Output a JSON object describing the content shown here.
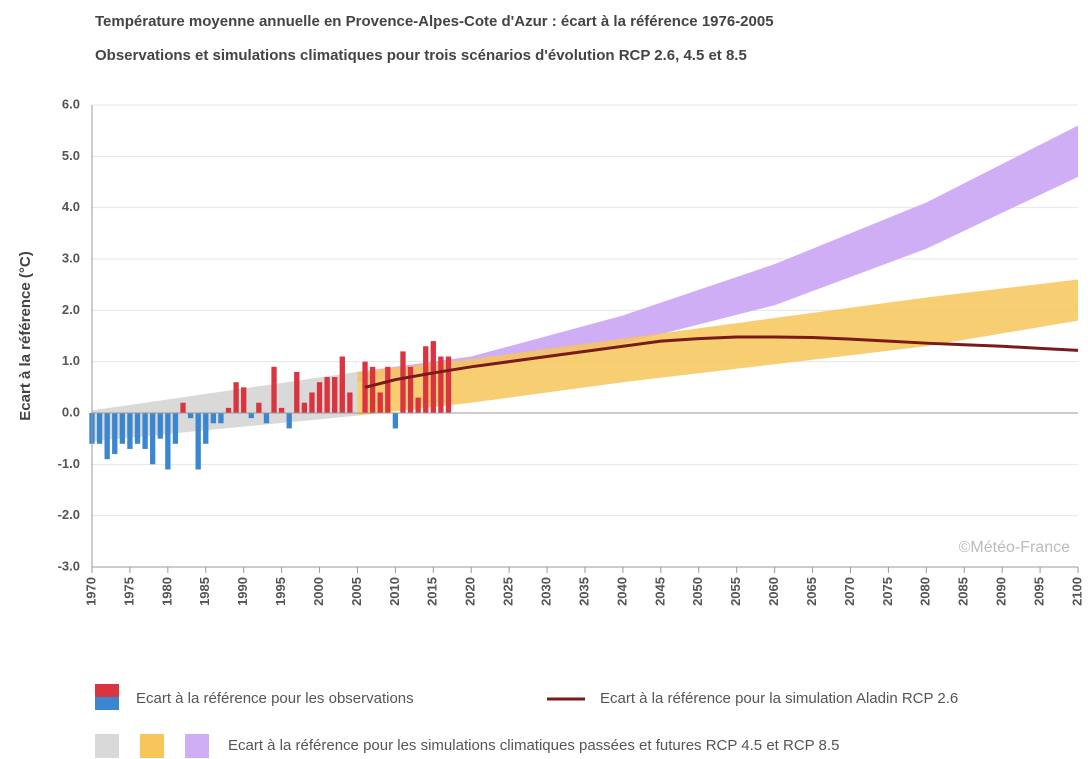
{
  "chart_data": {
    "type": "bar",
    "title": "Température moyenne annuelle en Provence-Alpes-Cote d'Azur : écart à la référence 1976-2005",
    "subtitle": "Observations et simulations climatiques pour trois scénarios d'évolution RCP 2.6, 4.5 et 8.5",
    "ylabel": "Ecart à la référence (°C)",
    "annotation": "©Météo-France",
    "xlim": [
      1970,
      2100
    ],
    "xticks": [
      1970,
      1975,
      1980,
      1985,
      1990,
      1995,
      2000,
      2005,
      2010,
      2015,
      2020,
      2025,
      2030,
      2035,
      2040,
      2045,
      2050,
      2055,
      2060,
      2065,
      2070,
      2075,
      2080,
      2085,
      2090,
      2095,
      2100
    ],
    "ylim": [
      -3,
      6
    ],
    "yticks": [
      {
        "value": -3,
        "label": "-3.0"
      },
      {
        "value": -2,
        "label": "-2.0"
      },
      {
        "value": -1,
        "label": "-1.0"
      },
      {
        "value": 0,
        "label": "0.0"
      },
      {
        "value": 1,
        "label": "1.0"
      },
      {
        "value": 2,
        "label": "2.0"
      },
      {
        "value": 3,
        "label": "3.0"
      },
      {
        "value": 4,
        "label": "4.0"
      },
      {
        "value": 5,
        "label": "5.0"
      },
      {
        "value": 6,
        "label": "6.0"
      }
    ],
    "grid": true,
    "observations": {
      "name": "Ecart à la référence pour les observations",
      "positive_color": "#d9343f",
      "negative_color": "#3a87d0",
      "x": [
        1970,
        1971,
        1972,
        1973,
        1974,
        1975,
        1976,
        1977,
        1978,
        1979,
        1980,
        1981,
        1982,
        1983,
        1984,
        1985,
        1986,
        1987,
        1988,
        1989,
        1990,
        1991,
        1992,
        1993,
        1994,
        1995,
        1996,
        1997,
        1998,
        1999,
        2000,
        2001,
        2002,
        2003,
        2004,
        2005,
        2006,
        2007,
        2008,
        2009,
        2010,
        2011,
        2012,
        2013,
        2014,
        2015,
        2016,
        2017
      ],
      "values": [
        -0.6,
        -0.6,
        -0.9,
        -0.8,
        -0.6,
        -0.7,
        -0.6,
        -0.7,
        -1.0,
        -0.5,
        -1.1,
        -0.6,
        0.2,
        -0.1,
        -1.1,
        -0.6,
        -0.2,
        -0.2,
        0.1,
        0.6,
        0.5,
        -0.1,
        0.2,
        -0.2,
        0.9,
        0.1,
        -0.3,
        0.8,
        0.2,
        0.4,
        0.6,
        0.7,
        0.7,
        1.1,
        0.4,
        null,
        1.0,
        0.9,
        0.4,
        0.9,
        -0.3,
        1.2,
        0.9,
        0.3,
        1.3,
        1.4,
        1.1,
        1.1
      ]
    },
    "line": {
      "name": "Ecart à la référence pour la simulation Aladin RCP 2.6",
      "color": "#7a1a1a",
      "x": [
        2006,
        2010,
        2015,
        2020,
        2025,
        2030,
        2035,
        2040,
        2045,
        2050,
        2055,
        2060,
        2065,
        2070,
        2075,
        2080,
        2085,
        2090,
        2095,
        2100
      ],
      "values": [
        0.5,
        0.65,
        0.78,
        0.9,
        1.0,
        1.1,
        1.2,
        1.3,
        1.4,
        1.45,
        1.48,
        1.48,
        1.47,
        1.44,
        1.4,
        1.36,
        1.33,
        1.3,
        1.26,
        1.22
      ]
    },
    "bands": {
      "name": "Ecart à la référence pour les simulations climatiques passées et futures RCP 4.5 et RCP 8.5",
      "items": [
        {
          "color": "#d9d9d9",
          "x": [
            1970,
            2005
          ],
          "low": [
            -0.55,
            -0.05
          ],
          "high": [
            0.05,
            0.8
          ]
        },
        {
          "color": "#cfaef5",
          "x": [
            2005,
            2020,
            2040,
            2060,
            2080,
            2100
          ],
          "low": [
            0.6,
            0.9,
            1.35,
            2.1,
            3.2,
            4.6
          ],
          "high": [
            0.8,
            1.1,
            1.9,
            2.9,
            4.1,
            5.6
          ]
        },
        {
          "color": "#f7c55a",
          "x": [
            2005,
            2020,
            2040,
            2060,
            2080,
            2100
          ],
          "low": [
            -0.05,
            0.2,
            0.6,
            0.95,
            1.3,
            1.8
          ],
          "high": [
            0.8,
            1.05,
            1.45,
            1.85,
            2.25,
            2.6
          ]
        }
      ]
    }
  }
}
